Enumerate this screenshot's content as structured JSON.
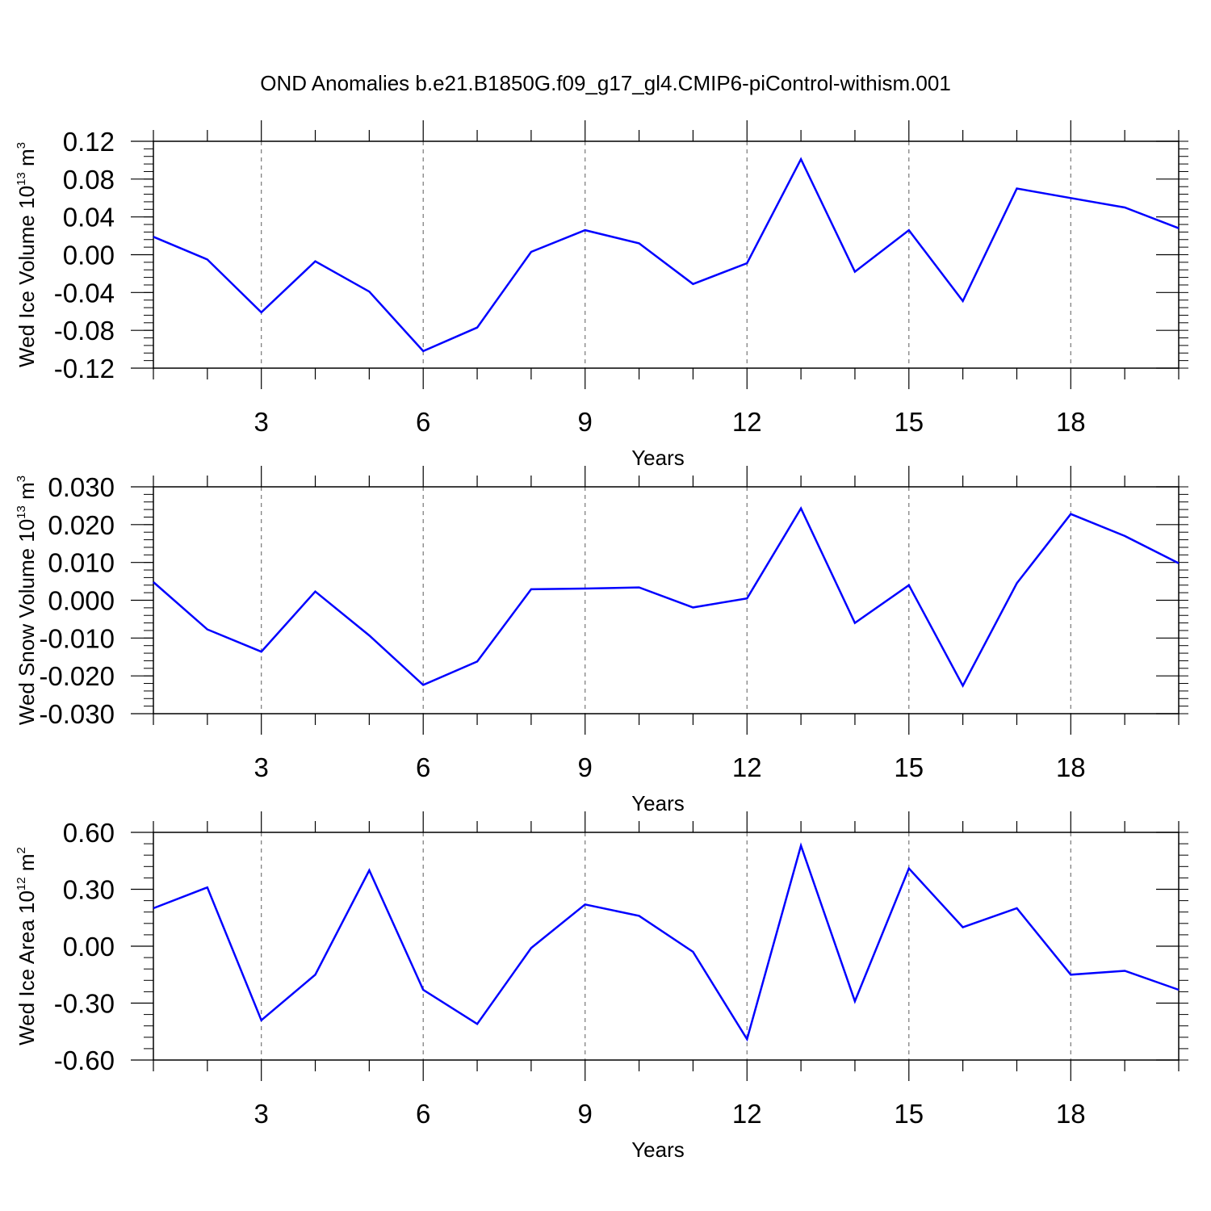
{
  "title": "OND Anomalies b.e21.B1850G.f09_g17_gl4.CMIP6-piControl-withism.001",
  "colors": {
    "line": "#0000ff",
    "axis": "#000000",
    "grid": "#777777"
  },
  "chart_data": [
    {
      "type": "line",
      "ylabel": {
        "text": "Wed Ice Volume 10",
        "exp": "13",
        "unit": " m",
        "unit_exp": "3"
      },
      "xlabel": "Years",
      "xlim": [
        1,
        20
      ],
      "ylim": [
        -0.12,
        0.12
      ],
      "x_ticks": [
        3,
        6,
        9,
        12,
        15,
        18
      ],
      "y_ticks": [
        "0.12",
        "0.08",
        "0.04",
        "0.00",
        "-0.04",
        "-0.08",
        "-0.12"
      ],
      "y_tick_values": [
        0.12,
        0.08,
        0.04,
        0.0,
        -0.04,
        -0.08,
        -0.12
      ],
      "y_minor_step": 0.008,
      "grid": "x-dashed",
      "x": [
        1,
        2,
        3,
        4,
        5,
        6,
        7,
        8,
        9,
        10,
        11,
        12,
        13,
        14,
        15,
        16,
        17,
        18,
        19,
        20
      ],
      "values": [
        0.019,
        -0.005,
        -0.061,
        -0.007,
        -0.039,
        -0.102,
        -0.077,
        0.003,
        0.026,
        0.012,
        -0.031,
        -0.009,
        0.101,
        -0.018,
        0.026,
        -0.049,
        0.07,
        0.06,
        0.05,
        0.028
      ]
    },
    {
      "type": "line",
      "ylabel": {
        "text": "Wed Snow Volume 10",
        "exp": "13",
        "unit": " m",
        "unit_exp": "3"
      },
      "xlabel": "Years",
      "xlim": [
        1,
        20
      ],
      "ylim": [
        -0.03,
        0.03
      ],
      "x_ticks": [
        3,
        6,
        9,
        12,
        15,
        18
      ],
      "y_ticks": [
        "0.030",
        "0.020",
        "0.010",
        "0.000",
        "-0.010",
        "-0.020",
        "-0.030"
      ],
      "y_tick_values": [
        0.03,
        0.02,
        0.01,
        0.0,
        -0.01,
        -0.02,
        -0.03
      ],
      "y_minor_step": 0.002,
      "grid": "x-dashed",
      "x": [
        1,
        2,
        3,
        4,
        5,
        6,
        7,
        8,
        9,
        10,
        11,
        12,
        13,
        14,
        15,
        16,
        17,
        18,
        19,
        20
      ],
      "values": [
        0.0048,
        -0.0077,
        -0.0136,
        0.0023,
        -0.0093,
        -0.0224,
        -0.0162,
        0.0029,
        0.0031,
        0.0034,
        -0.0019,
        0.0005,
        0.0243,
        -0.006,
        0.004,
        -0.0226,
        0.0045,
        0.0228,
        0.017,
        0.0098
      ]
    },
    {
      "type": "line",
      "ylabel": {
        "text": "Wed Ice Area 10",
        "exp": "12",
        "unit": " m",
        "unit_exp": "2"
      },
      "xlabel": "Years",
      "xlim": [
        1,
        20
      ],
      "ylim": [
        -0.6,
        0.6
      ],
      "x_ticks": [
        3,
        6,
        9,
        12,
        15,
        18
      ],
      "y_ticks": [
        "0.60",
        "0.30",
        "0.00",
        "-0.30",
        "-0.60"
      ],
      "y_tick_values": [
        0.6,
        0.3,
        0.0,
        -0.3,
        -0.6
      ],
      "y_minor_step": 0.06,
      "grid": "x-dashed",
      "x": [
        1,
        2,
        3,
        4,
        5,
        6,
        7,
        8,
        9,
        10,
        11,
        12,
        13,
        14,
        15,
        16,
        17,
        18,
        19,
        20
      ],
      "values": [
        0.2,
        0.31,
        -0.39,
        -0.15,
        0.4,
        -0.23,
        -0.41,
        -0.01,
        0.22,
        0.16,
        -0.03,
        -0.49,
        0.53,
        -0.29,
        0.41,
        0.1,
        0.2,
        -0.15,
        -0.13,
        -0.23
      ]
    }
  ]
}
